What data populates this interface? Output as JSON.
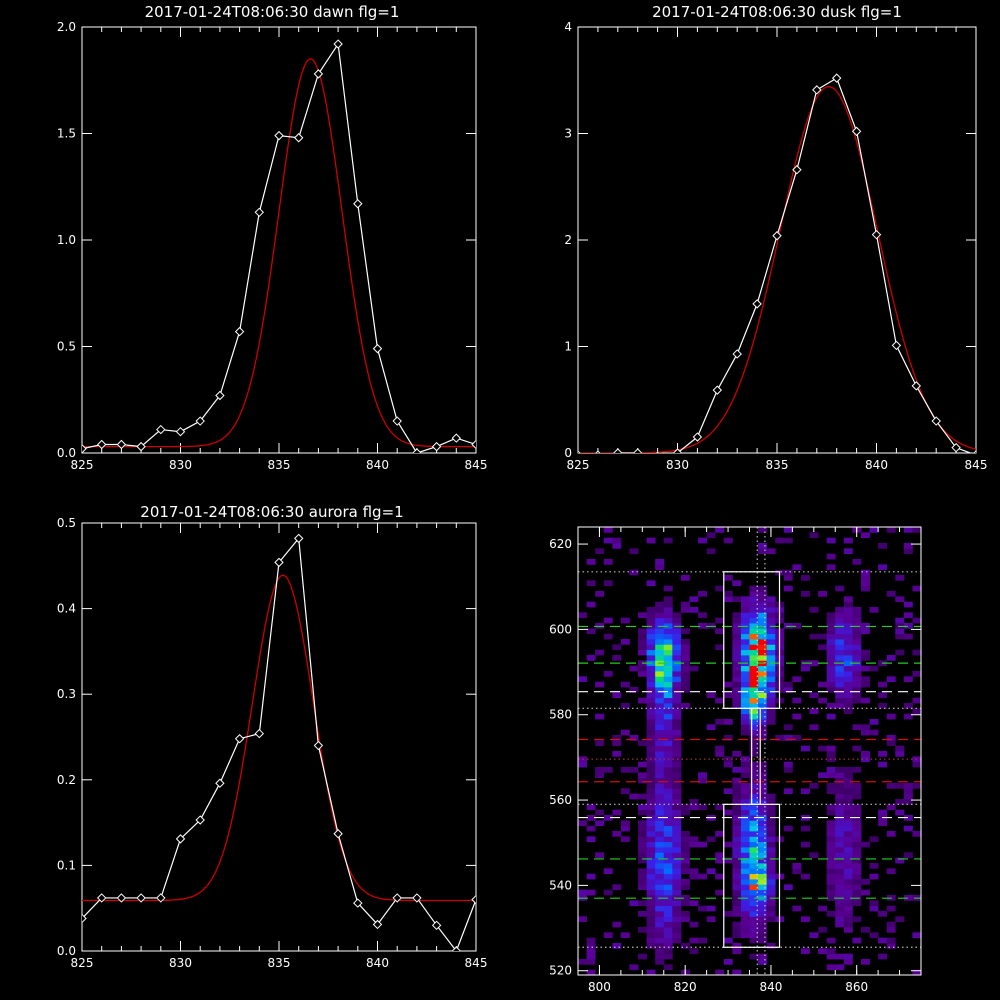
{
  "colors": {
    "background": "#000000",
    "axis": "#ffffff",
    "data_line": "#ffffff",
    "fit_line": "#cc0000"
  },
  "chart_data": [
    {
      "type": "line",
      "title": "2017-01-24T08:06:30 dawn flg=1",
      "xlim": [
        825,
        845
      ],
      "ylim": [
        0,
        2.0
      ],
      "xticks": [
        "825",
        "830",
        "835",
        "840",
        "845"
      ],
      "yticks": [
        "0.0",
        "0.5",
        "1.0",
        "1.5",
        "2.0"
      ],
      "xtick_values": [
        825,
        830,
        835,
        840,
        845
      ],
      "ytick_values": [
        0,
        0.5,
        1.0,
        1.5,
        2.0
      ],
      "series": [
        {
          "role": "data",
          "marker": "diamond",
          "color": "#ffffff",
          "x": [
            825,
            826,
            827,
            828,
            829,
            830,
            831,
            832,
            833,
            834,
            835,
            836,
            837,
            838,
            839,
            840,
            841,
            842,
            843,
            844,
            845
          ],
          "y": [
            0.02,
            0.04,
            0.04,
            0.03,
            0.11,
            0.1,
            0.15,
            0.27,
            0.57,
            1.13,
            1.49,
            1.48,
            1.78,
            1.92,
            1.17,
            0.49,
            0.15,
            0.0,
            0.03,
            0.07,
            0.04
          ]
        },
        {
          "role": "fit",
          "color": "#cc0000",
          "curve": "gaussian",
          "amplitude": 1.82,
          "center": 836.6,
          "sigma": 1.6,
          "baseline": 0.03
        }
      ]
    },
    {
      "type": "line",
      "title": "2017-01-24T08:06:30 dusk flg=1",
      "xlim": [
        825,
        845
      ],
      "ylim": [
        0,
        4
      ],
      "xticks": [
        "825",
        "830",
        "835",
        "840",
        "845"
      ],
      "yticks": [
        "0",
        "1",
        "2",
        "3",
        "4"
      ],
      "xtick_values": [
        825,
        830,
        835,
        840,
        845
      ],
      "ytick_values": [
        0,
        1,
        2,
        3,
        4
      ],
      "series": [
        {
          "role": "data",
          "marker": "diamond",
          "color": "#ffffff",
          "x": [
            825,
            826,
            827,
            828,
            829,
            830,
            831,
            832,
            833,
            834,
            835,
            836,
            837,
            838,
            839,
            840,
            841,
            842,
            843,
            844,
            845
          ],
          "y": [
            -0.02,
            -0.02,
            0.0,
            0.0,
            -0.03,
            0.0,
            0.15,
            0.59,
            0.93,
            1.4,
            2.04,
            2.66,
            3.41,
            3.52,
            3.02,
            2.05,
            1.01,
            0.63,
            0.3,
            0.05,
            -0.02
          ]
        },
        {
          "role": "fit",
          "color": "#cc0000",
          "curve": "gaussian",
          "amplitude": 3.44,
          "center": 837.6,
          "sigma": 2.45,
          "baseline": 0.0
        }
      ]
    },
    {
      "type": "line",
      "title": "2017-01-24T08:06:30 aurora flg=1",
      "xlim": [
        825,
        845
      ],
      "ylim": [
        0,
        0.5
      ],
      "xticks": [
        "825",
        "830",
        "835",
        "840",
        "845"
      ],
      "yticks": [
        "0.0",
        "0.1",
        "0.2",
        "0.3",
        "0.4",
        "0.5"
      ],
      "xtick_values": [
        825,
        830,
        835,
        840,
        845
      ],
      "ytick_values": [
        0,
        0.1,
        0.2,
        0.3,
        0.4,
        0.5
      ],
      "series": [
        {
          "role": "data",
          "marker": "diamond",
          "color": "#ffffff",
          "x": [
            825,
            826,
            827,
            828,
            829,
            830,
            831,
            832,
            833,
            834,
            835,
            836,
            837,
            838,
            839,
            840,
            841,
            842,
            843,
            844,
            845
          ],
          "y": [
            0.038,
            0.062,
            0.062,
            0.062,
            0.062,
            0.131,
            0.153,
            0.196,
            0.248,
            0.254,
            0.454,
            0.482,
            0.24,
            0.137,
            0.056,
            0.031,
            0.062,
            0.062,
            0.03,
            0.0,
            0.06
          ]
        },
        {
          "role": "fit",
          "color": "#cc0000",
          "curve": "gaussian",
          "amplitude": 0.38,
          "center": 835.2,
          "sigma": 1.55,
          "baseline": 0.059
        }
      ]
    },
    {
      "type": "heatmap",
      "title": "",
      "xlim": [
        795,
        875
      ],
      "ylim": [
        519,
        624
      ],
      "xticks": [
        "800",
        "820",
        "840",
        "860"
      ],
      "yticks": [
        "520",
        "540",
        "560",
        "580",
        "600",
        "620"
      ],
      "xtick_values": [
        800,
        820,
        840,
        860
      ],
      "ytick_values": [
        520,
        540,
        560,
        580,
        600,
        620
      ],
      "colormap": "rainbow",
      "blobs": [
        {
          "x": 837,
          "y": 594,
          "sx": 2.6,
          "sy": 7.5,
          "amp": 1.0
        },
        {
          "x": 836,
          "y": 583,
          "sx": 1.8,
          "sy": 4,
          "amp": 0.55
        },
        {
          "x": 836,
          "y": 547,
          "sx": 2.6,
          "sy": 11,
          "amp": 0.6
        },
        {
          "x": 837,
          "y": 540,
          "sx": 2.0,
          "sy": 3,
          "amp": 0.35
        },
        {
          "x": 815,
          "y": 594,
          "sx": 2.6,
          "sy": 6,
          "amp": 0.72
        },
        {
          "x": 815,
          "y": 580,
          "sx": 2.2,
          "sy": 9,
          "amp": 0.3
        },
        {
          "x": 815,
          "y": 545,
          "sx": 3.0,
          "sy": 13,
          "amp": 0.42
        },
        {
          "x": 857,
          "y": 594,
          "sx": 2.8,
          "sy": 7,
          "amp": 0.38
        },
        {
          "x": 857,
          "y": 548,
          "sx": 3.0,
          "sy": 13,
          "amp": 0.22
        }
      ],
      "boxes": [
        {
          "x": [
            829,
            842
          ],
          "y": [
            581.5,
            613.5
          ]
        },
        {
          "x": [
            829,
            842
          ],
          "y": [
            525.5,
            559
          ]
        },
        {
          "x": [
            835.5,
            837.5
          ],
          "y": [
            559,
            581.5
          ]
        }
      ],
      "vertical_dotted_lines": [
        836.8,
        838.6
      ],
      "horizontal_lines": [
        {
          "y": 613.5,
          "style": "dotted",
          "color": "#bbbbbb"
        },
        {
          "y": 600.7,
          "style": "dashed",
          "color": "#22cc22"
        },
        {
          "y": 592.1,
          "style": "dashed",
          "color": "#22cc22"
        },
        {
          "y": 585.4,
          "style": "dashed",
          "color": "#ffffff"
        },
        {
          "y": 581.5,
          "style": "dotted",
          "color": "#bbbbbb"
        },
        {
          "y": 574.2,
          "style": "dashed",
          "color": "#cc1111"
        },
        {
          "y": 569.6,
          "style": "dotted",
          "color": "#993333"
        },
        {
          "y": 564.3,
          "style": "dashed",
          "color": "#cc1111"
        },
        {
          "y": 559.0,
          "style": "dotted",
          "color": "#bbbbbb"
        },
        {
          "y": 555.9,
          "style": "dashed",
          "color": "#ffffff"
        },
        {
          "y": 546.2,
          "style": "dashed",
          "color": "#22cc22"
        },
        {
          "y": 537.0,
          "style": "dashed",
          "color": "#22cc22"
        },
        {
          "y": 525.5,
          "style": "dotted",
          "color": "#bbbbbb"
        }
      ]
    }
  ]
}
